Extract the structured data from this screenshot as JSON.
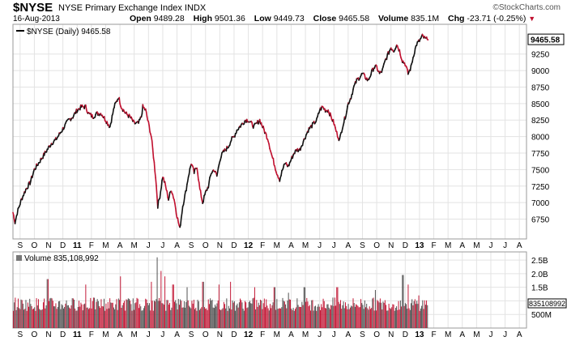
{
  "header": {
    "symbol": "$NYSE",
    "name": "NYSE Primary Exchange Index",
    "exchange": "INDX",
    "date": "16-Aug-2013",
    "brand": "©StockCharts.com",
    "open_label": "Open",
    "open": "9489.28",
    "high_label": "High",
    "high": "9501.36",
    "low_label": "Low",
    "low": "9449.73",
    "close_label": "Close",
    "close": "9465.58",
    "volume_label": "Volume",
    "volume": "835.1M",
    "chg_label": "Chg",
    "chg": "-23.71 (-0.25%)"
  },
  "colors": {
    "up": "#111111",
    "down": "#c0102f",
    "grid": "#e3e3e3",
    "frame": "#9a9a9a"
  },
  "chart_data": [
    {
      "type": "line",
      "title": "$NYSE (Daily) 9465.58",
      "legend_text": "$NYSE (Daily) 9465.58",
      "last_value_label": "9465.58",
      "ylim": [
        6450,
        9700
      ],
      "yticks": [
        6750,
        7000,
        7250,
        7500,
        7750,
        8000,
        8250,
        8500,
        8750,
        9000,
        9250
      ],
      "ytick_labels": [
        "6750",
        "7000",
        "7250",
        "7500",
        "7750",
        "8000",
        "8250",
        "8500",
        "8750",
        "9000",
        "9250"
      ],
      "x_labels": [
        "S",
        "O",
        "N",
        "D",
        "11",
        "F",
        "M",
        "A",
        "M",
        "J",
        "J",
        "A",
        "S",
        "O",
        "N",
        "D",
        "12",
        "F",
        "M",
        "A",
        "M",
        "J",
        "J",
        "A",
        "S",
        "O",
        "N",
        "D",
        "13",
        "F",
        "M",
        "A",
        "M",
        "J",
        "J",
        "A"
      ],
      "year_labels": [
        "11",
        "12",
        "13"
      ],
      "x_range_months": [
        0,
        36
      ],
      "anchors": [
        [
          0.0,
          6850
        ],
        [
          0.15,
          6700
        ],
        [
          0.3,
          6850
        ],
        [
          0.6,
          7050
        ],
        [
          0.9,
          7200
        ],
        [
          1.2,
          7300
        ],
        [
          1.5,
          7500
        ],
        [
          1.8,
          7600
        ],
        [
          2.1,
          7700
        ],
        [
          2.4,
          7800
        ],
        [
          2.7,
          7900
        ],
        [
          3.0,
          7950
        ],
        [
          3.3,
          8050
        ],
        [
          3.6,
          8150
        ],
        [
          3.9,
          8250
        ],
        [
          4.2,
          8300
        ],
        [
          4.5,
          8400
        ],
        [
          4.8,
          8450
        ],
        [
          5.1,
          8450
        ],
        [
          5.3,
          8350
        ],
        [
          5.6,
          8300
        ],
        [
          5.9,
          8350
        ],
        [
          6.2,
          8350
        ],
        [
          6.5,
          8250
        ],
        [
          6.8,
          8150
        ],
        [
          7.1,
          8450
        ],
        [
          7.4,
          8600
        ],
        [
          7.6,
          8450
        ],
        [
          7.9,
          8350
        ],
        [
          8.2,
          8300
        ],
        [
          8.5,
          8200
        ],
        [
          8.8,
          8200
        ],
        [
          9.0,
          8300
        ],
        [
          9.1,
          8450
        ],
        [
          9.3,
          8400
        ],
        [
          9.5,
          8200
        ],
        [
          9.7,
          8000
        ],
        [
          9.85,
          7700
        ],
        [
          10.0,
          7400
        ],
        [
          10.15,
          6950
        ],
        [
          10.3,
          7100
        ],
        [
          10.5,
          7400
        ],
        [
          10.7,
          7250
        ],
        [
          10.9,
          7050
        ],
        [
          11.1,
          7200
        ],
        [
          11.3,
          7050
        ],
        [
          11.5,
          6800
        ],
        [
          11.7,
          6600
        ],
        [
          11.9,
          6950
        ],
        [
          12.1,
          7150
        ],
        [
          12.3,
          7400
        ],
        [
          12.5,
          7600
        ],
        [
          12.7,
          7450
        ],
        [
          12.9,
          7550
        ],
        [
          13.1,
          7200
        ],
        [
          13.3,
          7000
        ],
        [
          13.5,
          7150
        ],
        [
          13.7,
          7250
        ],
        [
          13.9,
          7450
        ],
        [
          14.1,
          7500
        ],
        [
          14.3,
          7400
        ],
        [
          14.5,
          7650
        ],
        [
          14.7,
          7750
        ],
        [
          14.9,
          7800
        ],
        [
          15.1,
          7850
        ],
        [
          15.3,
          7950
        ],
        [
          15.5,
          8000
        ],
        [
          15.7,
          8100
        ],
        [
          15.9,
          8150
        ],
        [
          16.1,
          8200
        ],
        [
          16.3,
          8250
        ],
        [
          16.5,
          8250
        ],
        [
          16.7,
          8200
        ],
        [
          16.9,
          8150
        ],
        [
          17.1,
          8200
        ],
        [
          17.3,
          8250
        ],
        [
          17.5,
          8150
        ],
        [
          17.7,
          8050
        ],
        [
          17.9,
          7950
        ],
        [
          18.1,
          7750
        ],
        [
          18.3,
          7600
        ],
        [
          18.5,
          7450
        ],
        [
          18.7,
          7350
        ],
        [
          18.9,
          7500
        ],
        [
          19.1,
          7600
        ],
        [
          19.3,
          7550
        ],
        [
          19.5,
          7650
        ],
        [
          19.7,
          7750
        ],
        [
          19.9,
          7800
        ],
        [
          20.1,
          7800
        ],
        [
          20.3,
          7900
        ],
        [
          20.5,
          8000
        ],
        [
          20.7,
          8100
        ],
        [
          20.9,
          8150
        ],
        [
          21.1,
          8200
        ],
        [
          21.3,
          8250
        ],
        [
          21.5,
          8400
        ],
        [
          21.7,
          8450
        ],
        [
          21.9,
          8400
        ],
        [
          22.1,
          8400
        ],
        [
          22.3,
          8300
        ],
        [
          22.5,
          8200
        ],
        [
          22.7,
          8050
        ],
        [
          22.9,
          7950
        ],
        [
          23.1,
          8150
        ],
        [
          23.3,
          8300
        ],
        [
          23.5,
          8500
        ],
        [
          23.7,
          8600
        ],
        [
          23.9,
          8750
        ],
        [
          24.1,
          8850
        ],
        [
          24.3,
          8900
        ],
        [
          24.5,
          8950
        ],
        [
          24.7,
          8900
        ],
        [
          24.9,
          8850
        ],
        [
          25.1,
          8950
        ],
        [
          25.3,
          9050
        ],
        [
          25.5,
          9050
        ],
        [
          25.7,
          8950
        ],
        [
          25.9,
          9000
        ],
        [
          26.1,
          9150
        ],
        [
          26.3,
          9250
        ],
        [
          26.5,
          9350
        ],
        [
          26.7,
          9300
        ],
        [
          26.9,
          9400
        ],
        [
          27.1,
          9300
        ],
        [
          27.3,
          9150
        ],
        [
          27.5,
          9100
        ],
        [
          27.7,
          8950
        ],
        [
          27.9,
          9050
        ],
        [
          28.1,
          9250
        ],
        [
          28.3,
          9400
        ],
        [
          28.5,
          9450
        ],
        [
          28.7,
          9520
        ],
        [
          28.9,
          9480
        ],
        [
          29.1,
          9466
        ]
      ],
      "end_month": 29.1
    },
    {
      "type": "bar",
      "title": "Volume 835,108,992",
      "legend_text": "Volume 835,108,992",
      "last_value_label": "835108992",
      "ylim": [
        0,
        2.8
      ],
      "yticks": [
        0.5,
        1.0,
        1.5,
        2.0,
        2.5
      ],
      "ytick_labels": [
        "500M",
        "1.0B",
        "1.5B",
        "2.0B",
        "2.5B"
      ],
      "x_labels": [
        "S",
        "O",
        "N",
        "D",
        "11",
        "F",
        "M",
        "A",
        "M",
        "J",
        "J",
        "A",
        "S",
        "O",
        "N",
        "D",
        "12",
        "F",
        "M",
        "A",
        "M",
        "J",
        "J",
        "A",
        "S",
        "O",
        "N",
        "D",
        "13",
        "F",
        "M",
        "A",
        "M",
        "J",
        "J",
        "A"
      ],
      "unit": "billions of shares",
      "typical_level": 0.9,
      "spikes": [
        [
          2.4,
          1.8
        ],
        [
          5.1,
          1.6
        ],
        [
          7.5,
          1.9
        ],
        [
          9.7,
          1.7
        ],
        [
          10.1,
          2.6
        ],
        [
          10.35,
          2.1
        ],
        [
          10.6,
          1.9
        ],
        [
          11.2,
          1.6
        ],
        [
          12.2,
          1.5
        ],
        [
          13.3,
          1.7
        ],
        [
          14.4,
          1.6
        ],
        [
          15.2,
          1.7
        ],
        [
          16.9,
          1.5
        ],
        [
          18.3,
          1.5
        ],
        [
          19.3,
          1.3
        ],
        [
          20.4,
          1.5
        ],
        [
          22.7,
          1.5
        ],
        [
          25.4,
          1.4
        ],
        [
          27.3,
          1.95
        ],
        [
          27.7,
          1.6
        ],
        [
          28.4,
          1.2
        ],
        [
          29.1,
          0.84
        ]
      ]
    }
  ]
}
